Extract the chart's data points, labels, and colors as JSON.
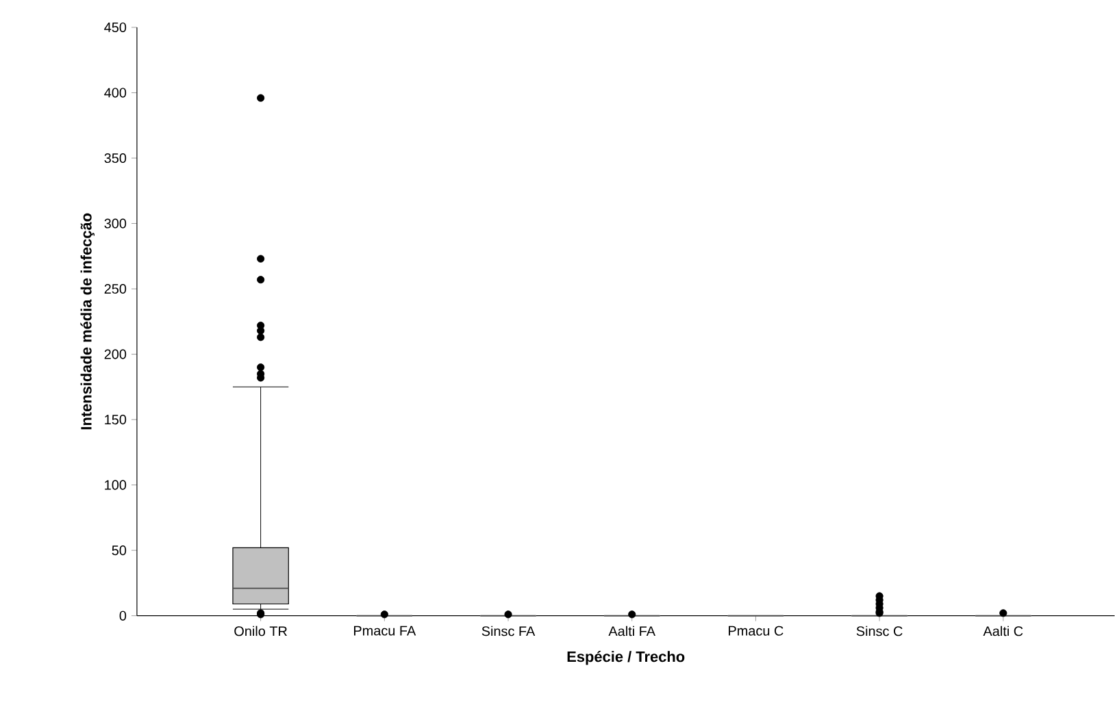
{
  "chart_data": {
    "type": "box",
    "xlabel": "Espécie / Trecho",
    "ylabel": "Intensidade média de infecção",
    "categories": [
      "Onilo TR",
      "Pmacu FA",
      "Sinsc FA",
      "Aalti FA",
      "Pmacu C",
      "Sinsc C",
      "Aalti C"
    ],
    "color": "#c0c0c0",
    "marker": "circle",
    "grid": false,
    "ylim": [
      0,
      450
    ],
    "yticks": [
      0,
      50,
      100,
      150,
      200,
      250,
      300,
      350,
      400,
      450
    ],
    "boxes": [
      {
        "low": 5,
        "q1": 9,
        "median": 21,
        "q3": 52,
        "high": 175,
        "outliers": [
          396,
          273,
          257,
          222,
          218,
          213,
          190,
          185,
          182,
          1,
          2
        ]
      },
      {
        "low": 0,
        "q1": 0,
        "median": 0,
        "q3": 0,
        "high": 0,
        "outliers": [
          1
        ]
      },
      {
        "low": 0,
        "q1": 0,
        "median": 0,
        "q3": 0,
        "high": 0,
        "outliers": [
          1
        ]
      },
      {
        "low": 0,
        "q1": 0,
        "median": 0,
        "q3": 0,
        "high": 0,
        "outliers": [
          1
        ]
      },
      {
        "low": 0,
        "q1": 0,
        "median": 0,
        "q3": 0,
        "high": 0
      },
      {
        "low": 0,
        "q1": 0,
        "median": 0,
        "q3": 0,
        "high": 0,
        "outliers": [
          15,
          12,
          9,
          6,
          3,
          2
        ]
      },
      {
        "low": 0,
        "q1": 0,
        "median": 0,
        "q3": 0,
        "high": 0,
        "outliers": [
          2
        ]
      }
    ]
  }
}
